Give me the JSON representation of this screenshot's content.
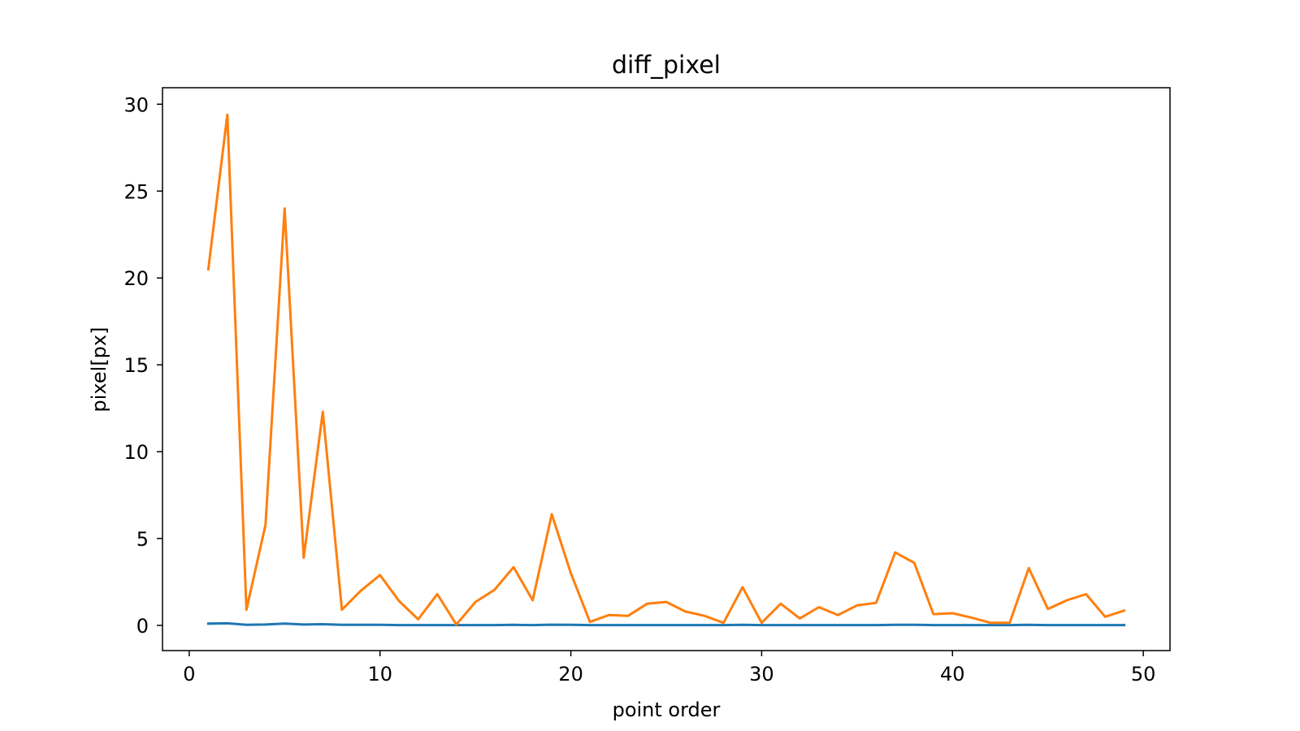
{
  "chart_data": {
    "type": "line",
    "title": "diff_pixel",
    "xlabel": "point order",
    "ylabel": "pixel[px]",
    "xlim": [
      -1.4,
      51.4
    ],
    "ylim": [
      -1.45,
      30.95
    ],
    "xticks": [
      0,
      10,
      20,
      30,
      40,
      50
    ],
    "yticks": [
      0,
      5,
      10,
      15,
      20,
      25,
      30
    ],
    "grid": false,
    "legend": false,
    "x": [
      1,
      2,
      3,
      4,
      5,
      6,
      7,
      8,
      9,
      10,
      11,
      12,
      13,
      14,
      15,
      16,
      17,
      18,
      19,
      20,
      21,
      22,
      23,
      24,
      25,
      26,
      27,
      28,
      29,
      30,
      31,
      32,
      33,
      34,
      35,
      36,
      37,
      38,
      39,
      40,
      41,
      42,
      43,
      44,
      45,
      46,
      47,
      48,
      49
    ],
    "series": [
      {
        "color": "#1f77b4",
        "values": [
          0.1,
          0.12,
          0.03,
          0.05,
          0.1,
          0.05,
          0.07,
          0.03,
          0.03,
          0.03,
          0.02,
          0.02,
          0.02,
          0.02,
          0.02,
          0.02,
          0.03,
          0.02,
          0.04,
          0.03,
          0.02,
          0.02,
          0.02,
          0.02,
          0.02,
          0.02,
          0.02,
          0.02,
          0.03,
          0.02,
          0.02,
          0.02,
          0.02,
          0.02,
          0.02,
          0.02,
          0.03,
          0.03,
          0.02,
          0.02,
          0.02,
          0.02,
          0.02,
          0.03,
          0.02,
          0.02,
          0.02,
          0.02,
          0.02
        ]
      },
      {
        "color": "#ff7f0e",
        "values": [
          20.5,
          29.4,
          0.9,
          5.8,
          24.0,
          3.9,
          12.3,
          0.9,
          2.0,
          2.9,
          1.4,
          0.35,
          1.8,
          0.05,
          1.35,
          2.05,
          3.35,
          1.45,
          6.4,
          3.0,
          0.2,
          0.6,
          0.55,
          1.25,
          1.35,
          0.8,
          0.55,
          0.15,
          2.2,
          0.15,
          1.25,
          0.4,
          1.05,
          0.6,
          1.15,
          1.3,
          4.2,
          3.6,
          0.65,
          0.7,
          0.45,
          0.15,
          0.15,
          3.3,
          0.95,
          1.45,
          1.8,
          0.5,
          0.85
        ]
      }
    ]
  }
}
